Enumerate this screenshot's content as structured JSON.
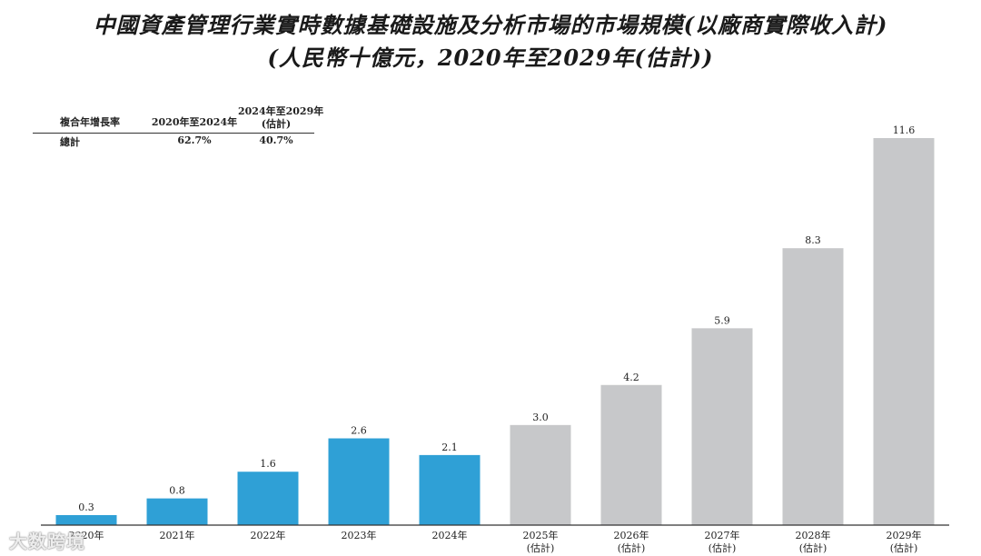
{
  "title_line1": "中國資產管理行業實時數據基礎設施及分析市場的市場規模(以廠商實際收入計)",
  "title_line2": "(人民幣十億元，2020年至2029年(估計))",
  "cagr_table": {
    "header": [
      "複合年增長率",
      "2020年至2024年",
      "2024年至2029年",
      "(估計)"
    ],
    "row": [
      "總計",
      "62.7%",
      "40.7%"
    ]
  },
  "watermark": "大数跨境",
  "chart_data": {
    "type": "bar",
    "categories": [
      "2020年",
      "2021年",
      "2022年",
      "2023年",
      "2024年",
      "2025年",
      "2026年",
      "2027年",
      "2028年",
      "2029年"
    ],
    "sublabels": [
      "",
      "",
      "",
      "",
      "",
      "(估計)",
      "(估計)",
      "(估計)",
      "(估計)",
      "(估計)"
    ],
    "values": [
      0.3,
      0.8,
      1.6,
      2.6,
      2.1,
      3.0,
      4.2,
      5.9,
      8.3,
      11.6
    ],
    "data_labels": [
      "0.3",
      "0.8",
      "1.6",
      "2.6",
      "2.1",
      "3.0",
      "4.2",
      "5.9",
      "8.3",
      "11.6"
    ],
    "colors": [
      "#2fa0d6",
      "#2fa0d6",
      "#2fa0d6",
      "#2fa0d6",
      "#2fa0d6",
      "#c7c8ca",
      "#c7c8ca",
      "#c7c8ca",
      "#c7c8ca",
      "#c7c8ca"
    ],
    "ylim": [
      0,
      11.6
    ],
    "grid": false,
    "xlabel": "",
    "ylabel": ""
  }
}
